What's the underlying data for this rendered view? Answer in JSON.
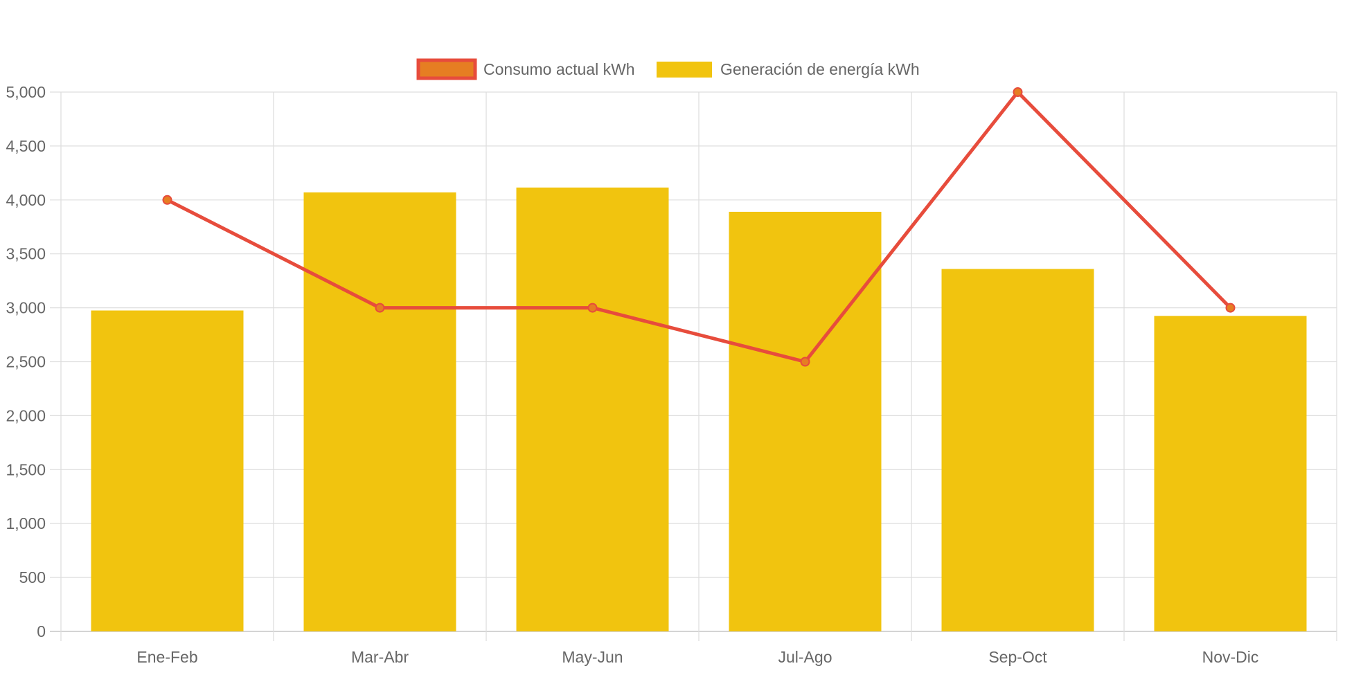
{
  "chart_data": {
    "type": "bar",
    "categories": [
      "Ene-Feb",
      "Mar-Abr",
      "May-Jun",
      "Jul-Ago",
      "Sep-Oct",
      "Nov-Dic"
    ],
    "series": [
      {
        "name": "Consumo actual kWh",
        "type": "line",
        "values": [
          4000,
          3000,
          3000,
          2500,
          5000,
          3000
        ],
        "color": "#E74C3C",
        "point_color": "#E67E22"
      },
      {
        "name": "Generación de energía kWh",
        "type": "bar",
        "values": [
          2975,
          4070,
          4115,
          3890,
          3360,
          2925
        ],
        "color": "#F1C40F"
      }
    ],
    "ylim": [
      0,
      5000
    ],
    "ytick_step": 500,
    "y_tick_labels": [
      "0",
      "500",
      "1,000",
      "1,500",
      "2,000",
      "2,500",
      "3,000",
      "3,500",
      "4,000",
      "4,500",
      "5,000"
    ],
    "title": "",
    "xlabel": "",
    "ylabel": "",
    "legend_position": "top-center",
    "grid": true
  },
  "colors": {
    "grid": "#dddddd",
    "axis": "#cccccc",
    "text": "#666666"
  }
}
